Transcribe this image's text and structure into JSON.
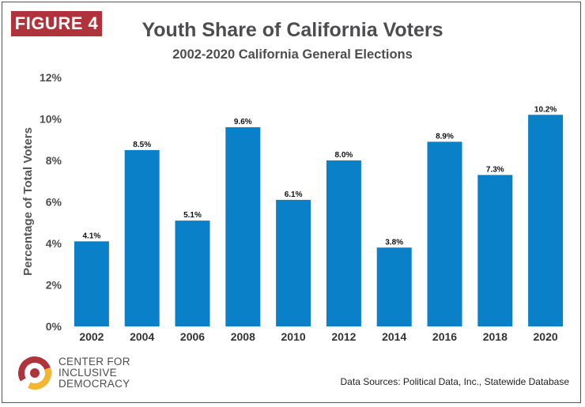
{
  "badge": "FIGURE 4",
  "logo_text": [
    "CENTER FOR",
    "INCLUSIVE",
    "DEMOCRACY"
  ],
  "source": "Data Sources: Political Data, Inc., Statewide Database",
  "colors": {
    "bar": "#0a80c8",
    "badge": "#b0323a",
    "text": "#4d4d4f"
  },
  "chart_data": {
    "type": "bar",
    "title": "Youth Share of California Voters",
    "subtitle": "2002-2020 California General Elections",
    "xlabel": "",
    "ylabel": "Percentage of Total Voters",
    "categories": [
      "2002",
      "2004",
      "2006",
      "2008",
      "2010",
      "2012",
      "2014",
      "2016",
      "2018",
      "2020"
    ],
    "values": [
      4.1,
      8.5,
      5.1,
      9.6,
      6.1,
      8.0,
      3.8,
      8.9,
      7.3,
      10.2
    ],
    "value_labels": [
      "4.1%",
      "8.5%",
      "5.1%",
      "9.6%",
      "6.1%",
      "8.0%",
      "3.8%",
      "8.9%",
      "7.3%",
      "10.2%"
    ],
    "ylim": [
      0,
      12
    ],
    "yticks": [
      0,
      2,
      4,
      6,
      8,
      10,
      12
    ],
    "ytick_labels": [
      "0%",
      "2%",
      "4%",
      "6%",
      "8%",
      "10%",
      "12%"
    ],
    "grid": false,
    "legend": "none"
  }
}
